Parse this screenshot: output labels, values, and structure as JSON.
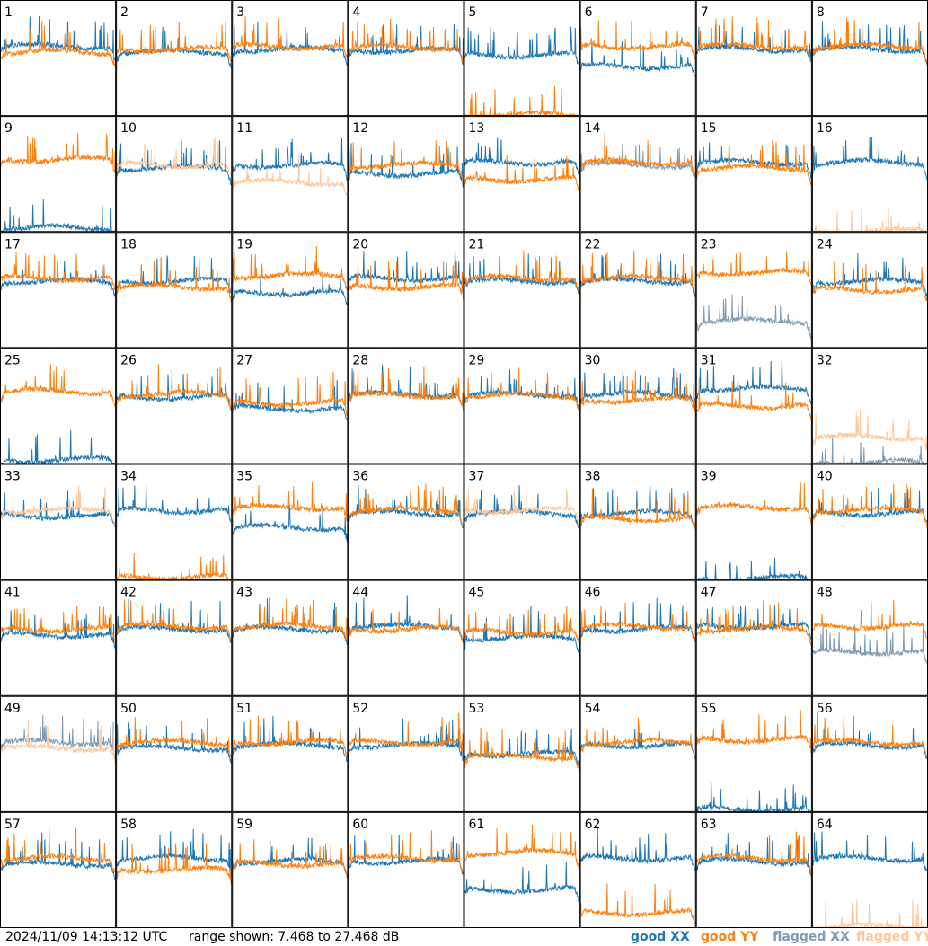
{
  "footer": {
    "timestamp": "2024/11/09 14:13:12 UTC",
    "range": "range shown: 7.468 to 27.468 dB",
    "legend": [
      {
        "key": "good_xx",
        "word": "good",
        "pol": "XX",
        "color": "#1f77b4"
      },
      {
        "key": "good_yy",
        "word": "good",
        "pol": "YY",
        "color": "#ff7f0e"
      },
      {
        "key": "flagged_xx",
        "word": "flagged",
        "pol": "XX",
        "color": "#7f9bb3"
      },
      {
        "key": "flagged_yy",
        "word": "flagged",
        "pol": "YY",
        "color": "#ffc79a"
      }
    ]
  },
  "chart_data": {
    "type": "line",
    "layout": "8x8 small multiples",
    "y_unit": "dB",
    "ylim": [
      7.468,
      27.468
    ],
    "x_label": "",
    "colors": {
      "good_xx": "#1f77b4",
      "good_yy": "#ff7f0e",
      "flagged_xx": "#7f9bb3",
      "flagged_yy": "#ffc79a"
    },
    "tile_labels": [
      "1",
      "2",
      "3",
      "4",
      "5",
      "6",
      "7",
      "8",
      "9",
      "10",
      "11",
      "12",
      "13",
      "14",
      "15",
      "16",
      "17",
      "18",
      "19",
      "20",
      "21",
      "22",
      "23",
      "24",
      "25",
      "26",
      "27",
      "28",
      "29",
      "30",
      "31",
      "32",
      "33",
      "34",
      "35",
      "36",
      "37",
      "38",
      "39",
      "40",
      "41",
      "42",
      "43",
      "44",
      "45",
      "46",
      "47",
      "48",
      "49",
      "50",
      "51",
      "52",
      "53",
      "54",
      "55",
      "56",
      "57",
      "58",
      "59",
      "60",
      "61",
      "62",
      "63",
      "64"
    ],
    "tiles": [
      {
        "label": "1",
        "xx": {
          "state": "good",
          "base": 19.5
        },
        "yy": {
          "state": "good",
          "base": 18.5
        }
      },
      {
        "label": "2",
        "xx": {
          "state": "good",
          "base": 18.5
        },
        "yy": {
          "state": "good",
          "base": 19.0
        }
      },
      {
        "label": "3",
        "xx": {
          "state": "good",
          "base": 19.0
        },
        "yy": {
          "state": "good",
          "base": 19.5
        }
      },
      {
        "label": "4",
        "xx": {
          "state": "good",
          "base": 18.8
        },
        "yy": {
          "state": "good",
          "base": 19.3
        }
      },
      {
        "label": "5",
        "xx": {
          "state": "good",
          "base": 18.0
        },
        "yy": {
          "state": "good",
          "base": 7.5
        }
      },
      {
        "label": "6",
        "xx": {
          "state": "good",
          "base": 16.0
        },
        "yy": {
          "state": "good",
          "base": 19.5
        }
      },
      {
        "label": "7",
        "xx": {
          "state": "good",
          "base": 19.0
        },
        "yy": {
          "state": "good",
          "base": 19.5
        }
      },
      {
        "label": "8",
        "xx": {
          "state": "good",
          "base": 19.0
        },
        "yy": {
          "state": "good",
          "base": 19.5
        }
      },
      {
        "label": "9",
        "xx": {
          "state": "good",
          "base": 8.0
        },
        "yy": {
          "state": "good",
          "base": 20.0
        }
      },
      {
        "label": "10",
        "xx": {
          "state": "good",
          "base": 18.5
        },
        "yy": {
          "state": "flagged",
          "base": 19.0
        }
      },
      {
        "label": "11",
        "xx": {
          "state": "good",
          "base": 19.0
        },
        "yy": {
          "state": "flagged",
          "base": 16.0
        }
      },
      {
        "label": "12",
        "xx": {
          "state": "good",
          "base": 17.5
        },
        "yy": {
          "state": "good",
          "base": 19.0
        }
      },
      {
        "label": "13",
        "xx": {
          "state": "good",
          "base": 19.5
        },
        "yy": {
          "state": "good",
          "base": 16.5
        }
      },
      {
        "label": "14",
        "xx": {
          "state": "flagged",
          "base": 19.0
        },
        "yy": {
          "state": "good",
          "base": 19.5
        }
      },
      {
        "label": "15",
        "xx": {
          "state": "good",
          "base": 19.5
        },
        "yy": {
          "state": "good",
          "base": 18.5
        }
      },
      {
        "label": "16",
        "xx": {
          "state": "good",
          "base": 19.5
        },
        "yy": {
          "state": "flagged",
          "base": 7.5
        }
      },
      {
        "label": "17",
        "xx": {
          "state": "good",
          "base": 19.0
        },
        "yy": {
          "state": "good",
          "base": 19.5
        }
      },
      {
        "label": "18",
        "xx": {
          "state": "good",
          "base": 19.0
        },
        "yy": {
          "state": "good",
          "base": 18.0
        }
      },
      {
        "label": "19",
        "xx": {
          "state": "good",
          "base": 17.0
        },
        "yy": {
          "state": "good",
          "base": 20.0
        }
      },
      {
        "label": "20",
        "xx": {
          "state": "good",
          "base": 19.5
        },
        "yy": {
          "state": "good",
          "base": 18.0
        }
      },
      {
        "label": "21",
        "xx": {
          "state": "good",
          "base": 19.0
        },
        "yy": {
          "state": "good",
          "base": 19.5
        }
      },
      {
        "label": "22",
        "xx": {
          "state": "good",
          "base": 19.0
        },
        "yy": {
          "state": "good",
          "base": 19.5
        }
      },
      {
        "label": "23",
        "xx": {
          "state": "flagged",
          "base": 12.0
        },
        "yy": {
          "state": "good",
          "base": 20.5
        }
      },
      {
        "label": "24",
        "xx": {
          "state": "good",
          "base": 19.0
        },
        "yy": {
          "state": "good",
          "base": 17.5
        }
      },
      {
        "label": "25",
        "xx": {
          "state": "good",
          "base": 8.0
        },
        "yy": {
          "state": "good",
          "base": 20.0
        }
      },
      {
        "label": "26",
        "xx": {
          "state": "good",
          "base": 19.0
        },
        "yy": {
          "state": "good",
          "base": 19.5
        }
      },
      {
        "label": "27",
        "xx": {
          "state": "good",
          "base": 17.0
        },
        "yy": {
          "state": "good",
          "base": 18.0
        }
      },
      {
        "label": "28",
        "xx": {
          "state": "good",
          "base": 19.5
        },
        "yy": {
          "state": "good",
          "base": 19.3
        }
      },
      {
        "label": "29",
        "xx": {
          "state": "good",
          "base": 19.5
        },
        "yy": {
          "state": "good",
          "base": 19.3
        }
      },
      {
        "label": "30",
        "xx": {
          "state": "good",
          "base": 19.5
        },
        "yy": {
          "state": "good",
          "base": 18.5
        }
      },
      {
        "label": "31",
        "xx": {
          "state": "good",
          "base": 20.5
        },
        "yy": {
          "state": "good",
          "base": 17.5
        }
      },
      {
        "label": "32",
        "xx": {
          "state": "flagged",
          "base": 7.6
        },
        "yy": {
          "state": "flagged",
          "base": 12.0
        }
      },
      {
        "label": "33",
        "xx": {
          "state": "good",
          "base": 18.5
        },
        "yy": {
          "state": "flagged",
          "base": 19.5
        }
      },
      {
        "label": "34",
        "xx": {
          "state": "good",
          "base": 19.5
        },
        "yy": {
          "state": "good",
          "base": 7.8
        }
      },
      {
        "label": "35",
        "xx": {
          "state": "good",
          "base": 16.5
        },
        "yy": {
          "state": "good",
          "base": 20.0
        }
      },
      {
        "label": "36",
        "xx": {
          "state": "good",
          "base": 19.0
        },
        "yy": {
          "state": "good",
          "base": 19.5
        }
      },
      {
        "label": "37",
        "xx": {
          "state": "good",
          "base": 19.0
        },
        "yy": {
          "state": "flagged",
          "base": 19.5
        }
      },
      {
        "label": "38",
        "xx": {
          "state": "good",
          "base": 19.0
        },
        "yy": {
          "state": "good",
          "base": 18.0
        }
      },
      {
        "label": "39",
        "xx": {
          "state": "good",
          "base": 7.6
        },
        "yy": {
          "state": "good",
          "base": 20.0
        }
      },
      {
        "label": "40",
        "xx": {
          "state": "good",
          "base": 19.0
        },
        "yy": {
          "state": "good",
          "base": 19.5
        }
      },
      {
        "label": "41",
        "xx": {
          "state": "good",
          "base": 18.0
        },
        "yy": {
          "state": "good",
          "base": 19.0
        }
      },
      {
        "label": "42",
        "xx": {
          "state": "good",
          "base": 19.0
        },
        "yy": {
          "state": "good",
          "base": 19.5
        }
      },
      {
        "label": "43",
        "xx": {
          "state": "good",
          "base": 19.0
        },
        "yy": {
          "state": "good",
          "base": 19.5
        }
      },
      {
        "label": "44",
        "xx": {
          "state": "good",
          "base": 19.5
        },
        "yy": {
          "state": "good",
          "base": 19.0
        }
      },
      {
        "label": "45",
        "xx": {
          "state": "good",
          "base": 17.5
        },
        "yy": {
          "state": "good",
          "base": 18.5
        }
      },
      {
        "label": "46",
        "xx": {
          "state": "good",
          "base": 19.0
        },
        "yy": {
          "state": "good",
          "base": 19.5
        }
      },
      {
        "label": "47",
        "xx": {
          "state": "good",
          "base": 19.5
        },
        "yy": {
          "state": "good",
          "base": 19.0
        }
      },
      {
        "label": "48",
        "xx": {
          "state": "flagged",
          "base": 15.0
        },
        "yy": {
          "state": "good",
          "base": 19.5
        }
      },
      {
        "label": "49",
        "xx": {
          "state": "flagged",
          "base": 19.5
        },
        "yy": {
          "state": "flagged",
          "base": 18.5
        }
      },
      {
        "label": "50",
        "xx": {
          "state": "good",
          "base": 18.5
        },
        "yy": {
          "state": "good",
          "base": 19.5
        }
      },
      {
        "label": "51",
        "xx": {
          "state": "good",
          "base": 19.0
        },
        "yy": {
          "state": "good",
          "base": 19.5
        }
      },
      {
        "label": "52",
        "xx": {
          "state": "good",
          "base": 19.0
        },
        "yy": {
          "state": "good",
          "base": 19.5
        }
      },
      {
        "label": "53",
        "xx": {
          "state": "good",
          "base": 17.5
        },
        "yy": {
          "state": "good",
          "base": 17.0
        }
      },
      {
        "label": "54",
        "xx": {
          "state": "good",
          "base": 19.0
        },
        "yy": {
          "state": "good",
          "base": 19.5
        }
      },
      {
        "label": "55",
        "xx": {
          "state": "good",
          "base": 7.8
        },
        "yy": {
          "state": "good",
          "base": 20.0
        }
      },
      {
        "label": "56",
        "xx": {
          "state": "good",
          "base": 19.0
        },
        "yy": {
          "state": "good",
          "base": 19.5
        }
      },
      {
        "label": "57",
        "xx": {
          "state": "good",
          "base": 18.5
        },
        "yy": {
          "state": "good",
          "base": 19.5
        }
      },
      {
        "label": "58",
        "xx": {
          "state": "good",
          "base": 19.5
        },
        "yy": {
          "state": "good",
          "base": 17.5
        }
      },
      {
        "label": "59",
        "xx": {
          "state": "good",
          "base": 19.0
        },
        "yy": {
          "state": "good",
          "base": 18.5
        }
      },
      {
        "label": "60",
        "xx": {
          "state": "good",
          "base": 19.0
        },
        "yy": {
          "state": "good",
          "base": 19.5
        }
      },
      {
        "label": "61",
        "xx": {
          "state": "good",
          "base": 14.0
        },
        "yy": {
          "state": "good",
          "base": 20.5
        }
      },
      {
        "label": "62",
        "xx": {
          "state": "good",
          "base": 19.5
        },
        "yy": {
          "state": "good",
          "base": 10.0
        }
      },
      {
        "label": "63",
        "xx": {
          "state": "good",
          "base": 19.0
        },
        "yy": {
          "state": "good",
          "base": 19.5
        }
      },
      {
        "label": "64",
        "xx": {
          "state": "good",
          "base": 19.5
        },
        "yy": {
          "state": "flagged",
          "base": 7.5
        }
      }
    ]
  }
}
